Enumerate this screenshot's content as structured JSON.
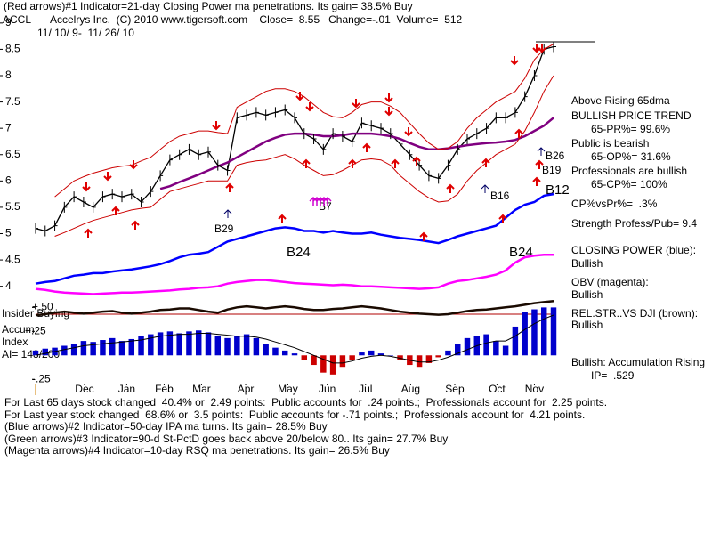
{
  "header": {
    "line1": "(Red arrows)#1 Indicator=21-day Closing Power ma penetrations. Its gain= 38.5% Buy",
    "symbol": "ACCL",
    "line2": "Accelrys Inc.  (C) 2010 www.tigersoft.com    Close=  8.55   Change=-.01  Volume=  512",
    "dates": "11/ 10/ 9-  11/ 26/ 10"
  },
  "chart_data": {
    "type": "stock",
    "xlim": [
      0,
      54
    ],
    "xticks": [
      {
        "value": 5.1,
        "label": "Dec"
      },
      {
        "value": 9.5,
        "label": "Jan"
      },
      {
        "value": 13.4,
        "label": "Feb"
      },
      {
        "value": 17.3,
        "label": "Mar"
      },
      {
        "value": 21.9,
        "label": "Apr"
      },
      {
        "value": 26.3,
        "label": "May"
      },
      {
        "value": 30.4,
        "label": "Jun"
      },
      {
        "value": 34.4,
        "label": "Jul"
      },
      {
        "value": 39.1,
        "label": "Aug"
      },
      {
        "value": 43.7,
        "label": "Sep"
      },
      {
        "value": 48.1,
        "label": "Oct"
      },
      {
        "value": 52.0,
        "label": "Nov"
      }
    ],
    "ylim": [
      2,
      9.2
    ],
    "yticks": [
      4,
      4.5,
      5,
      5.5,
      6,
      6.5,
      7,
      7.5,
      8,
      8.5,
      9
    ],
    "y2lim": [
      -0.35,
      0.55
    ],
    "y2ticks": [
      {
        "value": 0.5,
        "label": "+.50"
      },
      {
        "value": 0.25,
        "label": "+.25"
      },
      {
        "value": -0.25,
        "label": "-.25"
      }
    ],
    "grid": false,
    "series": [
      {
        "color": "#000000",
        "values": [
          5.1,
          5.05,
          5.15,
          5.5,
          5.7,
          5.6,
          5.5,
          5.7,
          5.75,
          5.7,
          5.75,
          5.6,
          5.8,
          6.1,
          6.4,
          6.5,
          6.6,
          6.5,
          6.55,
          6.3,
          6.2,
          7.2,
          7.25,
          7.3,
          7.25,
          7.3,
          7.35,
          7.2,
          6.9,
          6.8,
          6.6,
          6.9,
          6.85,
          6.75,
          7.1,
          7.05,
          7.0,
          6.9,
          6.7,
          6.5,
          6.3,
          6.1,
          6.05,
          6.3,
          6.6,
          6.8,
          6.9,
          7.0,
          7.2,
          7.2,
          7.3,
          7.6,
          8.0,
          8.5,
          8.55
        ]
      },
      {
        "color": "#800080",
        "values": [
          null,
          null,
          null,
          null,
          null,
          null,
          null,
          null,
          null,
          null,
          null,
          null,
          null,
          5.85,
          5.9,
          5.98,
          6.05,
          6.12,
          6.2,
          6.28,
          6.35,
          6.45,
          6.55,
          6.65,
          6.75,
          6.82,
          6.88,
          6.9,
          6.9,
          6.88,
          6.85,
          6.85,
          6.87,
          6.9,
          6.9,
          6.9,
          6.88,
          6.85,
          6.8,
          6.72,
          6.65,
          6.6,
          6.6,
          6.62,
          6.65,
          6.68,
          6.7,
          6.72,
          6.73,
          6.75,
          6.78,
          6.85,
          6.95,
          7.05,
          7.2
        ]
      },
      {
        "color": "#cc0000",
        "values": [
          null,
          null,
          5.7,
          5.85,
          6.0,
          6.08,
          6.15,
          6.2,
          6.25,
          6.28,
          6.3,
          6.38,
          6.45,
          6.6,
          6.75,
          6.85,
          6.9,
          6.95,
          6.95,
          6.92,
          6.9,
          7.4,
          7.5,
          7.6,
          7.7,
          7.75,
          7.75,
          7.7,
          7.6,
          7.45,
          7.3,
          7.22,
          7.2,
          7.3,
          7.45,
          7.5,
          7.5,
          7.42,
          7.3,
          7.1,
          6.9,
          6.72,
          6.6,
          6.62,
          6.75,
          7.0,
          7.2,
          7.35,
          7.5,
          7.6,
          7.7,
          7.95,
          8.3,
          8.5,
          8.6
        ]
      },
      {
        "color": "#cc0000",
        "values": [
          null,
          null,
          4.95,
          5.02,
          5.1,
          5.18,
          5.25,
          5.3,
          5.35,
          5.4,
          5.45,
          5.48,
          5.5,
          5.65,
          5.8,
          5.85,
          5.9,
          5.95,
          6.0,
          6.0,
          6.0,
          6.3,
          6.35,
          6.38,
          6.4,
          6.45,
          6.5,
          6.42,
          6.3,
          6.2,
          6.1,
          6.12,
          6.2,
          6.3,
          6.4,
          6.42,
          6.4,
          6.3,
          6.1,
          5.95,
          5.8,
          5.68,
          5.6,
          5.62,
          5.75,
          6.0,
          6.2,
          6.35,
          6.5,
          6.6,
          6.7,
          6.95,
          7.3,
          7.7,
          8.0
        ]
      },
      {
        "name": "CLOSING POWER (blue):",
        "status": "Bullish",
        "color": "#0000ff",
        "values": [
          4.05,
          4.08,
          4.1,
          4.15,
          4.2,
          4.22,
          4.25,
          4.25,
          4.28,
          4.3,
          4.32,
          4.35,
          4.38,
          4.42,
          4.48,
          4.55,
          4.6,
          4.62,
          4.65,
          4.75,
          4.85,
          4.9,
          4.95,
          5.0,
          5.05,
          5.1,
          5.12,
          5.1,
          5.05,
          5.05,
          5.02,
          5.05,
          5.02,
          5.0,
          5.0,
          5.02,
          4.98,
          4.95,
          4.92,
          4.9,
          4.88,
          4.85,
          4.82,
          4.88,
          4.95,
          5.0,
          5.05,
          5.1,
          5.15,
          5.3,
          5.45,
          5.55,
          5.6,
          5.72,
          5.75
        ]
      },
      {
        "name": "OBV (magenta):",
        "status": "Bullish",
        "color": "#ff00ff",
        "values": [
          3.95,
          3.93,
          3.9,
          3.88,
          3.87,
          3.86,
          3.85,
          3.86,
          3.87,
          3.88,
          3.88,
          3.89,
          3.9,
          3.91,
          3.92,
          3.94,
          3.95,
          3.97,
          3.98,
          4.0,
          4.05,
          4.08,
          4.1,
          4.12,
          4.12,
          4.1,
          4.08,
          4.06,
          4.05,
          4.04,
          4.03,
          4.02,
          4.03,
          4.02,
          4.0,
          4.0,
          3.99,
          3.98,
          3.97,
          3.96,
          3.95,
          3.96,
          3.98,
          4.05,
          4.1,
          4.12,
          4.15,
          4.18,
          4.22,
          4.3,
          4.45,
          4.55,
          4.58,
          4.6,
          4.6
        ]
      },
      {
        "name": "REL.STR..VS DJI (brown):",
        "status": "Bullish",
        "color": "#1a0a00",
        "values": [
          3.45,
          3.47,
          3.5,
          3.52,
          3.5,
          3.48,
          3.5,
          3.52,
          3.53,
          3.5,
          3.48,
          3.5,
          3.52,
          3.55,
          3.56,
          3.58,
          3.58,
          3.55,
          3.52,
          3.5,
          3.56,
          3.6,
          3.62,
          3.6,
          3.58,
          3.6,
          3.62,
          3.6,
          3.57,
          3.55,
          3.55,
          3.57,
          3.58,
          3.6,
          3.62,
          3.6,
          3.58,
          3.55,
          3.52,
          3.5,
          3.48,
          3.47,
          3.46,
          3.47,
          3.5,
          3.53,
          3.55,
          3.56,
          3.58,
          3.6,
          3.62,
          3.65,
          3.68,
          3.7,
          3.72
        ]
      },
      {
        "type": "bar",
        "axis": "y2",
        "color": "#0000cc",
        "negative_color": "#cc0000",
        "values": [
          0.05,
          0.07,
          0.08,
          0.1,
          0.12,
          0.15,
          0.14,
          0.16,
          0.18,
          0.15,
          0.17,
          0.2,
          0.22,
          0.24,
          0.25,
          0.23,
          0.25,
          0.26,
          0.24,
          0.2,
          0.18,
          0.2,
          0.22,
          0.18,
          0.12,
          0.08,
          0.05,
          0.02,
          -0.05,
          -0.1,
          -0.18,
          -0.2,
          -0.12,
          -0.05,
          0.03,
          0.05,
          0.02,
          0,
          -0.05,
          -0.1,
          -0.12,
          -0.08,
          -0.02,
          0.05,
          0.12,
          0.18,
          0.2,
          0.22,
          0.15,
          0.1,
          0.3,
          0.45,
          0.48,
          0.5,
          0.5
        ]
      },
      {
        "axis": "y2",
        "color": "#000000",
        "values": [
          0.0,
          0.02,
          0.04,
          0.06,
          0.08,
          0.1,
          0.11,
          0.12,
          0.13,
          0.14,
          0.15,
          0.16,
          0.18,
          0.2,
          0.21,
          0.22,
          0.22,
          0.23,
          0.23,
          0.22,
          0.21,
          0.2,
          0.2,
          0.19,
          0.17,
          0.14,
          0.11,
          0.08,
          0.04,
          0.0,
          -0.04,
          -0.08,
          -0.08,
          -0.06,
          -0.03,
          -0.01,
          0.0,
          -0.01,
          -0.03,
          -0.05,
          -0.07,
          -0.07,
          -0.05,
          -0.02,
          0.02,
          0.06,
          0.1,
          0.13,
          0.15,
          0.15,
          0.2,
          0.27,
          0.33,
          0.38,
          0.42
        ]
      }
    ],
    "annotations": [
      "B29",
      "B24",
      "B24",
      "B7",
      "B16",
      "B26",
      "B19",
      "B12"
    ]
  },
  "summary": {
    "trend1": "Above Rising 65dma",
    "trend2": "BULLISH PRICE TREND",
    "pr": "65-PR%= 99.6%",
    "public": "Public is bearish",
    "op": "65-OP%= 31.6%",
    "pros": "Professionals are bullish",
    "cp": "65-CP%= 100%",
    "cpvspr": "CP%vsPr%=  .3%",
    "strength": "Strength Profess/Pub= 9.4",
    "accum": "Bullish: Accumulation Rising",
    "ip": "IP=  .529"
  },
  "left_labels": {
    "insider": "Insider Buying",
    "accum": "Accum",
    "index": "Index",
    "ai": "AI= 148/200"
  },
  "footer": [
    "For Last 65 days stock changed  40.4% or  2.49 points:  Public accounts for  .24 points.;  Professionals account for  2.25 points.",
    "For Last year stock changed  68.6% or  3.5 points:  Public accounts for -.71 points.;  Professionals account for  4.21 points.",
    "(Blue arrows)#2 Indicator=50-day IPA ma turns. Its gain= 28.5% Buy",
    "(Green arrows)#3 Indicator=90-d St-PctD goes back above 20/below 80.. Its gain= 27.7% Buy",
    "(Magenta arrows)#4 Indicator=10-day RSQ ma penetrations. Its gain= 26.5% Buy"
  ]
}
